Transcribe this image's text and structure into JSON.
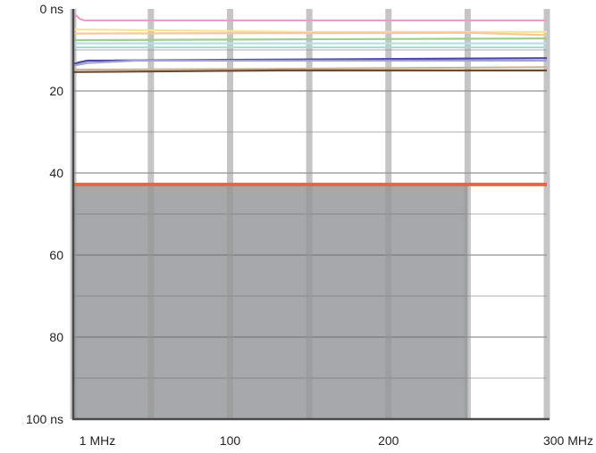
{
  "chart_data": {
    "type": "line",
    "title": "",
    "xlabel": "",
    "ylabel": "",
    "x_ticks": [
      {
        "value": 1,
        "label": "1 MHz"
      },
      {
        "value": 100,
        "label": "100"
      },
      {
        "value": 200,
        "label": "200"
      },
      {
        "value": 300,
        "label": "300 MHz"
      }
    ],
    "y_ticks": [
      {
        "value": 0,
        "label": "0 ns"
      },
      {
        "value": 20,
        "label": "20"
      },
      {
        "value": 40,
        "label": "40"
      },
      {
        "value": 60,
        "label": "60"
      },
      {
        "value": 80,
        "label": "80"
      },
      {
        "value": 100,
        "label": "100 ns"
      }
    ],
    "xlim": [
      1,
      300
    ],
    "ylim": [
      0,
      100
    ],
    "y_inverted": true,
    "grid": true,
    "grid_x_major": [
      1,
      50,
      100,
      150,
      200,
      250,
      300
    ],
    "grid_y_minor": [
      10,
      30,
      50,
      70,
      90
    ],
    "shaded_region": {
      "x": [
        1,
        250
      ],
      "y": [
        43,
        100
      ],
      "color": "#a7a8ab"
    },
    "series": [
      {
        "color": "#e8a0c8",
        "points": [
          [
            1,
            2.0
          ],
          [
            3,
            1.6
          ],
          [
            5,
            2.4
          ],
          [
            8,
            2.8
          ],
          [
            300,
            2.8
          ]
        ]
      },
      {
        "color": "#f6e3a0",
        "points": [
          [
            1,
            5.0
          ],
          [
            150,
            5.6
          ],
          [
            300,
            5.6
          ]
        ]
      },
      {
        "color": "#f6c896",
        "points": [
          [
            1,
            6.0
          ],
          [
            250,
            5.8
          ],
          [
            300,
            6.4
          ]
        ]
      },
      {
        "color": "#9fcf8f",
        "points": [
          [
            1,
            7.0
          ],
          [
            2,
            7.6
          ],
          [
            300,
            7.2
          ]
        ]
      },
      {
        "color": "#b9dde9",
        "points": [
          [
            1,
            8.4
          ],
          [
            300,
            8.4
          ]
        ]
      },
      {
        "color": "#a9d9d3",
        "points": [
          [
            1,
            9.4
          ],
          [
            300,
            9.4
          ]
        ]
      },
      {
        "color": "#4b4a97",
        "points": [
          [
            1,
            13.5
          ],
          [
            5,
            13.0
          ],
          [
            10,
            12.6
          ],
          [
            300,
            12.0
          ]
        ]
      },
      {
        "color": "#a2a2d6",
        "points": [
          [
            1,
            13.8
          ],
          [
            10,
            13.2
          ],
          [
            40,
            12.6
          ],
          [
            300,
            12.6
          ]
        ]
      },
      {
        "color": "#c9b39a",
        "points": [
          [
            1,
            14.8
          ],
          [
            130,
            14.6
          ],
          [
            300,
            14.2
          ]
        ]
      },
      {
        "color": "#6b4a2f",
        "points": [
          [
            1,
            15.4
          ],
          [
            130,
            15.0
          ],
          [
            300,
            15.0
          ]
        ]
      },
      {
        "color": "#e8663a",
        "points": [
          [
            1,
            42.8
          ],
          [
            300,
            42.8
          ]
        ]
      }
    ]
  }
}
